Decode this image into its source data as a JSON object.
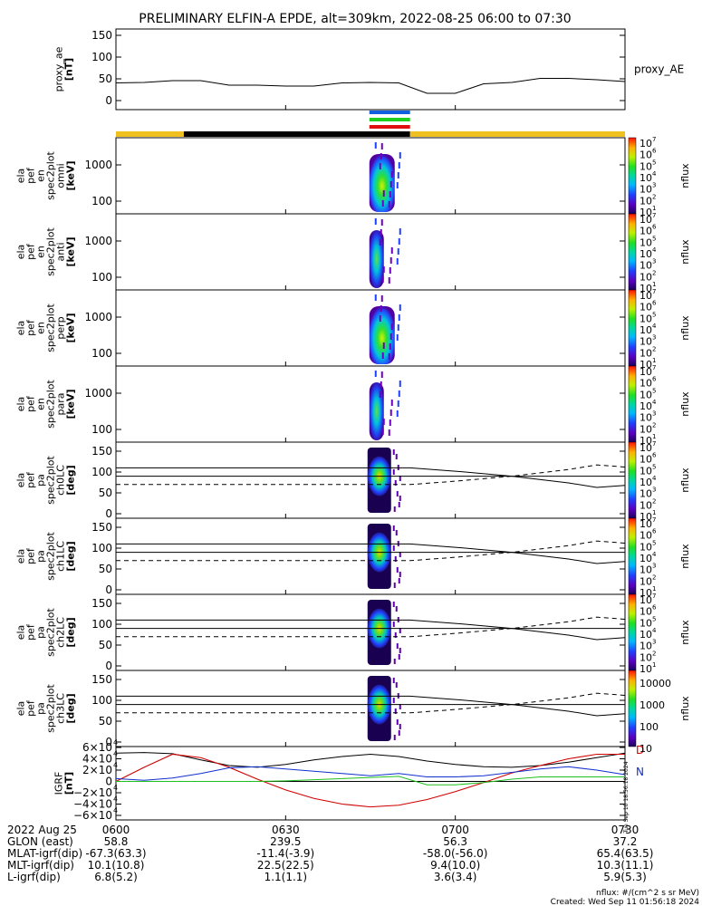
{
  "title": "PRELIMINARY ELFIN-A EPDE, alt=309km, 2022-08-25 06:00 to 07:30",
  "time_ticks": [
    "0600",
    "0630",
    "0700",
    "0730"
  ],
  "colorbar_label": "nflux",
  "colorbar_ticks_1e7": [
    "10",
    "10",
    "10",
    "10",
    "10",
    "10",
    "10"
  ],
  "colorbar_ticks_1e7_exp": [
    "7",
    "6",
    "5",
    "4",
    "3",
    "2",
    "1"
  ],
  "colorbar_tick_10000": "10000",
  "colorbar_tick_1000": "1000",
  "colorbar_tick_100": "100",
  "colorbar_tick_10": "10",
  "panels": [
    {
      "id": "proxy-ae",
      "ylabel": [
        "proxy_ae",
        "[nT]"
      ],
      "yticks": [
        "150",
        "100",
        "50",
        "0"
      ],
      "right_label": "proxy_AE"
    },
    {
      "id": "omni",
      "ylabel": [
        "ela",
        "pef",
        "en",
        "spec2plot",
        "omni",
        "[keV]"
      ],
      "yticks": [
        "1000",
        "100"
      ]
    },
    {
      "id": "anti",
      "ylabel": [
        "ela",
        "pef",
        "en",
        "spec2plot",
        "anti",
        "[keV]"
      ],
      "yticks": [
        "1000",
        "100"
      ]
    },
    {
      "id": "perp",
      "ylabel": [
        "ela",
        "pef",
        "en",
        "spec2plot",
        "perp",
        "[keV]"
      ],
      "yticks": [
        "1000",
        "100"
      ]
    },
    {
      "id": "para",
      "ylabel": [
        "ela",
        "pef",
        "en",
        "spec2plot",
        "para",
        "[keV]"
      ],
      "yticks": [
        "1000",
        "100"
      ]
    },
    {
      "id": "ch0lc",
      "ylabel": [
        "ela",
        "pef",
        "pa",
        "spec2plot",
        "ch0LC",
        "[deg]"
      ],
      "yticks": [
        "150",
        "100",
        "50",
        "0"
      ]
    },
    {
      "id": "ch1lc",
      "ylabel": [
        "ela",
        "pef",
        "pa",
        "spec2plot",
        "ch1LC",
        "[deg]"
      ],
      "yticks": [
        "150",
        "100",
        "50",
        "0"
      ]
    },
    {
      "id": "ch2lc",
      "ylabel": [
        "ela",
        "pef",
        "pa",
        "spec2plot",
        "ch2LC",
        "[deg]"
      ],
      "yticks": [
        "150",
        "100",
        "50",
        "0"
      ]
    },
    {
      "id": "ch3lc",
      "ylabel": [
        "ela",
        "pef",
        "pa",
        "spec2plot",
        "ch3LC",
        "[deg]"
      ],
      "yticks": [
        "150",
        "100",
        "50",
        "0"
      ]
    },
    {
      "id": "igrf",
      "ylabel": [
        "IGRF",
        "[nT]"
      ],
      "yticks": [
        "6×10",
        "4×10",
        "2×10",
        "0",
        "−2×10",
        "−4×10",
        "−6×10"
      ],
      "ytick_exp": "4",
      "right_labels": [
        "D",
        "N"
      ]
    }
  ],
  "footer": {
    "date": "2022 Aug 25",
    "rows": [
      {
        "label": "GLON (east)",
        "values": [
          "58.8",
          "239.5",
          "56.3",
          "37.2"
        ]
      },
      {
        "label": "MLAT-igrf(dip)",
        "values": [
          "-67.3(63.3)",
          "-11.4(-3.9)",
          "-58.0(-56.0)",
          "65.4(63.5)"
        ]
      },
      {
        "label": "MLT-igrf(dip)",
        "values": [
          "10.1(10.8)",
          "22.5(22.5)",
          "9.4(10.0)",
          "10.3(11.1)"
        ]
      },
      {
        "label": "L-igrf(dip)",
        "values": [
          "6.8(5.2)",
          "1.1(1.1)",
          "3.6(3.4)",
          "5.9(5.3)"
        ]
      }
    ],
    "unit_note": "nflux: #/(cm^2 s sr MeV)",
    "created": "Created: Wed Sep 11 01:56:18 2024",
    "side_stamp": "Tue Sep 10 18:56:18 2024"
  },
  "chart_data": {
    "type": "line",
    "x_range": [
      "06:00",
      "07:30"
    ],
    "proxy_ae": {
      "ylim": [
        0,
        150
      ],
      "times_min": [
        0,
        5,
        10,
        15,
        20,
        25,
        30,
        35,
        40,
        45,
        50,
        55,
        60,
        65,
        70,
        75,
        80,
        85,
        90
      ],
      "values": [
        45,
        46,
        50,
        50,
        40,
        40,
        38,
        38,
        45,
        46,
        45,
        22,
        22,
        43,
        46,
        55,
        55,
        52,
        48
      ]
    },
    "igrf": {
      "ylim": [
        -60000,
        60000
      ],
      "times_min": [
        0,
        5,
        10,
        15,
        20,
        25,
        30,
        35,
        40,
        45,
        50,
        55,
        60,
        65,
        70,
        75,
        80,
        85,
        90
      ],
      "series": [
        {
          "color": "#000000",
          "values": [
            50000,
            51000,
            49000,
            38000,
            28000,
            25000,
            30000,
            38000,
            44000,
            48000,
            44000,
            36000,
            30000,
            26000,
            25000,
            28000,
            34000,
            42000,
            50000
          ]
        },
        {
          "color": "#d00000",
          "values": [
            0,
            25000,
            48000,
            42000,
            25000,
            4000,
            -15000,
            -30000,
            -40000,
            -45000,
            -42000,
            -32000,
            -18000,
            -2000,
            15000,
            28000,
            40000,
            48000,
            48000
          ]
        },
        {
          "color": "#1030d0",
          "values": [
            5000,
            2000,
            6000,
            14000,
            24000,
            26000,
            22000,
            18000,
            14000,
            10000,
            14000,
            8000,
            8000,
            10000,
            16000,
            22000,
            26000,
            20000,
            12000
          ]
        },
        {
          "color": "#20c020",
          "values": [
            0,
            0,
            0,
            0,
            0,
            0,
            1000,
            3000,
            5000,
            7000,
            9000,
            -6000,
            -6000,
            -2000,
            4000,
            8000,
            8000,
            8000,
            8000
          ]
        }
      ]
    },
    "loss_cone": {
      "ch0lc": {
        "times_min": [
          0,
          52,
          60,
          70,
          80,
          85,
          90
        ],
        "solid": [
          110,
          110,
          102,
          90,
          74,
          63,
          68
        ],
        "dashed": [
          70,
          70,
          78,
          90,
          106,
          117,
          112
        ],
        "flat": 90
      },
      "ch1lc": {
        "times_min": [
          0,
          52,
          60,
          70,
          80,
          85,
          90
        ],
        "solid": [
          110,
          110,
          102,
          90,
          74,
          63,
          68
        ],
        "dashed": [
          70,
          70,
          78,
          90,
          106,
          117,
          112
        ],
        "flat": 90
      },
      "ch2lc": {
        "times_min": [
          0,
          52,
          60,
          70,
          80,
          85,
          90
        ],
        "solid": [
          110,
          110,
          102,
          90,
          74,
          63,
          68
        ],
        "dashed": [
          70,
          70,
          78,
          90,
          106,
          117,
          112
        ],
        "flat": 90
      },
      "ch3lc": {
        "times_min": [
          0,
          52,
          60,
          70,
          80,
          85,
          90
        ],
        "solid": [
          110,
          110,
          102,
          90,
          74,
          63,
          68
        ],
        "dashed": [
          70,
          70,
          78,
          90,
          106,
          117,
          112
        ],
        "flat": 90
      }
    },
    "science_zone_minutes": [
      44,
      52
    ],
    "mode_bar": {
      "colors": [
        "#1060e0",
        "#20d020",
        "#e01010"
      ],
      "range_minutes": [
        44,
        52
      ]
    },
    "spacecraft_bar": {
      "segments": [
        {
          "from": 0,
          "to": 12,
          "color": "#f0c020"
        },
        {
          "from": 12,
          "to": 52,
          "color": "#000000"
        },
        {
          "from": 52,
          "to": 90,
          "color": "#f0c020"
        }
      ]
    }
  }
}
